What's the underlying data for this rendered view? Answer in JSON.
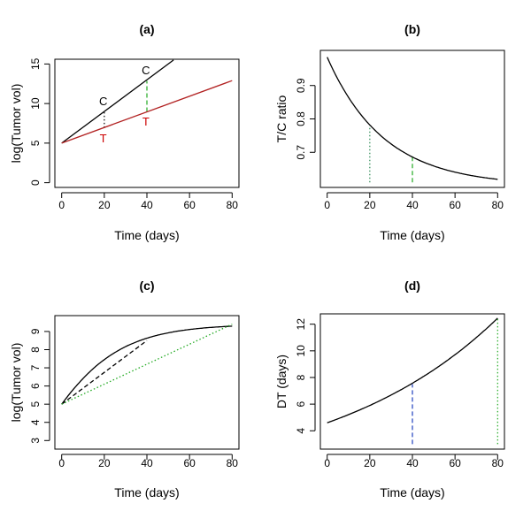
{
  "chart_data": [
    {
      "panel": "(a)",
      "type": "line",
      "title": "(a)",
      "xlabel": "Time (days)",
      "ylabel": "log(Tumor vol)",
      "xlim": [
        0,
        80
      ],
      "ylim": [
        0,
        15
      ],
      "xticks": [
        0,
        20,
        40,
        60,
        80
      ],
      "yticks": [
        0,
        5,
        10,
        15
      ],
      "series": [
        {
          "color": "#000000",
          "style": "solid",
          "x": [
            0,
            52.5
          ],
          "y": [
            5,
            15.5
          ]
        },
        {
          "color": "#b22222",
          "style": "solid",
          "x": [
            0,
            80
          ],
          "y": [
            5,
            12.9
          ]
        }
      ],
      "vlines": [
        {
          "x": 20,
          "y": [
            6.95,
            9.0
          ],
          "color": "#000000",
          "style": "dotted"
        },
        {
          "x": 40,
          "y": [
            8.95,
            12.85
          ],
          "color": "#22aa22",
          "style": "dashed"
        }
      ],
      "annotations": [
        {
          "text": "C",
          "x": 19.5,
          "y": 9.8,
          "color": "#000000"
        },
        {
          "text": "T",
          "x": 19.5,
          "y": 5.1,
          "color": "#cc0000"
        },
        {
          "text": "C",
          "x": 39.5,
          "y": 13.7,
          "color": "#000000"
        },
        {
          "text": "T",
          "x": 39.5,
          "y": 7.2,
          "color": "#cc0000"
        }
      ]
    },
    {
      "panel": "(b)",
      "type": "line",
      "title": "(b)",
      "xlabel": "Time (days)",
      "ylabel": "T/C ratio",
      "xlim": [
        0,
        80
      ],
      "ylim": [
        0.61,
        0.99
      ],
      "xticks": [
        0,
        20,
        40,
        60,
        80
      ],
      "yticks": [
        0.7,
        0.8,
        0.9
      ],
      "series": [
        {
          "color": "#000000",
          "style": "solid",
          "curve": "tc",
          "params": {
            "a": 0.6,
            "b": 0.385,
            "k": 0.0375
          }
        }
      ],
      "vlines": [
        {
          "x": 20,
          "y": [
            0.61,
            0.78
          ],
          "color": "#2e8b57",
          "style": "dotted"
        },
        {
          "x": 40,
          "y": [
            0.61,
            0.687
          ],
          "color": "#22aa22",
          "style": "dashed"
        }
      ]
    },
    {
      "panel": "(c)",
      "type": "line",
      "title": "(c)",
      "xlabel": "Time (days)",
      "ylabel": "log(Tumor vol)",
      "xlim": [
        0,
        80
      ],
      "ylim": [
        2.8,
        9.6
      ],
      "xticks": [
        0,
        20,
        40,
        60,
        80
      ],
      "yticks": [
        3,
        4,
        5,
        6,
        7,
        8,
        9
      ],
      "series": [
        {
          "color": "#000000",
          "style": "solid",
          "curve": "gompertz",
          "params": {
            "L": 9.4,
            "y0": 5.0,
            "k": 0.05
          }
        },
        {
          "color": "#000000",
          "style": "dashed",
          "x": [
            0,
            40
          ],
          "y": [
            5.0,
            8.5
          ]
        },
        {
          "color": "#22aa22",
          "style": "dotted",
          "x": [
            0,
            80
          ],
          "y": [
            5.0,
            9.4
          ]
        }
      ]
    },
    {
      "panel": "(d)",
      "type": "line",
      "title": "(d)",
      "xlabel": "Time (days)",
      "ylabel": "DT (days)",
      "xlim": [
        0,
        80
      ],
      "ylim": [
        3.0,
        12.4
      ],
      "xticks": [
        0,
        20,
        40,
        60,
        80
      ],
      "yticks": [
        4,
        6,
        8,
        10,
        12
      ],
      "series": [
        {
          "color": "#000000",
          "style": "solid",
          "curve": "exp",
          "params": {
            "a": 4.6,
            "k": 0.01245
          }
        }
      ],
      "vlines": [
        {
          "x": 40,
          "y": [
            3.0,
            7.5
          ],
          "color": "#1f3fbf",
          "style": "dashed"
        },
        {
          "x": 80,
          "y": [
            3.0,
            12.4
          ],
          "color": "#22aa22",
          "style": "dotted"
        }
      ]
    }
  ]
}
